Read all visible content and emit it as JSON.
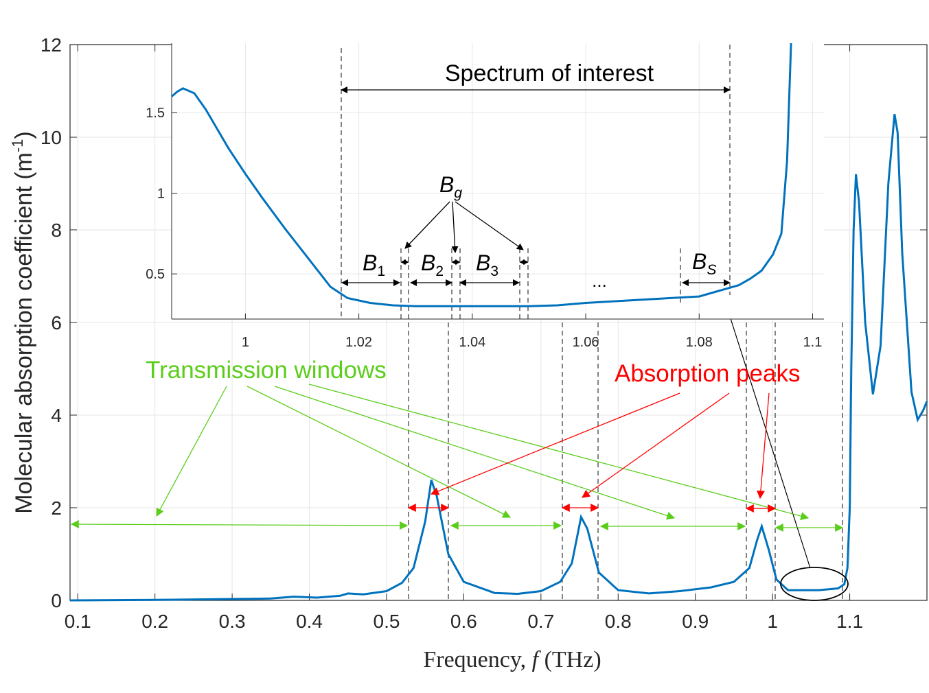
{
  "chart_data": [
    {
      "type": "line",
      "xlabel_parts": {
        "prefix": "Frequency, ",
        "var": "f",
        "suffix": " (THz)"
      },
      "ylabel": "Molecular absorption coefficient (m",
      "ylabel_sup": "-1",
      "ylabel_close": ")",
      "xlim": [
        0.09,
        1.2
      ],
      "ylim": [
        0,
        12
      ],
      "grid": true,
      "x_ticks": [
        0.1,
        0.2,
        0.3,
        0.4,
        0.5,
        0.6,
        0.7,
        0.8,
        0.9,
        1,
        1.1
      ],
      "x_tick_labels": [
        "0.1",
        "0.2",
        "0.3",
        "0.4",
        "0.5",
        "0.6",
        "0.7",
        "0.8",
        "0.9",
        "1",
        "1.1"
      ],
      "y_ticks": [
        0,
        2,
        4,
        6,
        8,
        10,
        12
      ],
      "y_tick_labels": [
        "0",
        "2",
        "4",
        "6",
        "8",
        "10",
        "12"
      ],
      "series": [
        {
          "color": "#0072BD",
          "x": [
            0.09,
            0.2,
            0.3,
            0.35,
            0.38,
            0.41,
            0.44,
            0.45,
            0.47,
            0.5,
            0.52,
            0.535,
            0.55,
            0.558,
            0.565,
            0.58,
            0.6,
            0.64,
            0.67,
            0.7,
            0.725,
            0.74,
            0.752,
            0.76,
            0.775,
            0.8,
            0.84,
            0.88,
            0.92,
            0.95,
            0.97,
            0.98,
            0.986,
            0.995,
            1.005,
            1.02,
            1.06,
            1.085,
            1.093,
            1.097,
            1.1,
            1.102,
            1.105,
            1.108,
            1.112,
            1.12,
            1.13,
            1.14,
            1.15,
            1.158,
            1.162,
            1.168,
            1.18,
            1.188,
            1.195,
            1.2
          ],
          "y": [
            0.0,
            0.01,
            0.03,
            0.04,
            0.08,
            0.06,
            0.1,
            0.15,
            0.13,
            0.2,
            0.38,
            0.7,
            1.7,
            2.6,
            2.25,
            1.0,
            0.4,
            0.16,
            0.14,
            0.2,
            0.4,
            0.8,
            1.8,
            1.55,
            0.6,
            0.22,
            0.15,
            0.2,
            0.28,
            0.4,
            0.7,
            1.3,
            1.6,
            1.1,
            0.45,
            0.22,
            0.22,
            0.26,
            0.35,
            0.7,
            2.0,
            5.0,
            8.0,
            9.2,
            8.6,
            6.0,
            4.45,
            5.5,
            9.0,
            10.5,
            10.1,
            7.5,
            4.5,
            3.9,
            4.1,
            4.3
          ]
        }
      ],
      "annotations": {
        "transmission_windows": {
          "text": "Transmission windows",
          "color": "#5ACD1A"
        },
        "absorption_peaks": {
          "text": "Absorption peaks",
          "color": "#FF0000"
        }
      }
    },
    {
      "type": "line",
      "inset": true,
      "xlim": [
        0.987,
        1.102
      ],
      "ylim": [
        0.22,
        1.93
      ],
      "x_ticks": [
        1,
        1.02,
        1.04,
        1.06,
        1.08,
        1.1
      ],
      "x_tick_labels": [
        "1",
        "1.02",
        "1.04",
        "1.06",
        "1.08",
        "1.1"
      ],
      "y_ticks": [
        0.5,
        1,
        1.5
      ],
      "y_tick_labels": [
        "0.5",
        "1",
        "1.5"
      ],
      "grid": true,
      "series": [
        {
          "color": "#0072BD",
          "x": [
            0.987,
            0.988,
            0.989,
            0.991,
            0.993,
            0.995,
            0.997,
            1.0,
            1.003,
            1.007,
            1.011,
            1.015,
            1.018,
            1.022,
            1.026,
            1.03,
            1.035,
            1.04,
            1.045,
            1.05,
            1.055,
            1.06,
            1.065,
            1.07,
            1.075,
            1.08,
            1.083,
            1.085,
            1.087,
            1.089,
            1.091,
            1.093,
            1.0945,
            1.0955,
            1.0962
          ],
          "y": [
            1.6,
            1.63,
            1.65,
            1.62,
            1.52,
            1.4,
            1.28,
            1.12,
            0.97,
            0.78,
            0.6,
            0.42,
            0.35,
            0.32,
            0.305,
            0.3,
            0.3,
            0.3,
            0.3,
            0.3,
            0.305,
            0.32,
            0.33,
            0.34,
            0.35,
            0.36,
            0.39,
            0.41,
            0.43,
            0.47,
            0.52,
            0.62,
            0.75,
            1.2,
            1.93
          ]
        }
      ],
      "title": "Spectrum of interest",
      "band_labels": {
        "bg": {
          "base": "B",
          "sub": "g"
        },
        "b1": {
          "base": "B",
          "sub": "1"
        },
        "b2": {
          "base": "B",
          "sub": "2"
        },
        "b3": {
          "base": "B",
          "sub": "3"
        },
        "bs": {
          "base": "B",
          "sub": "S"
        },
        "ellipsis": "..."
      }
    }
  ]
}
